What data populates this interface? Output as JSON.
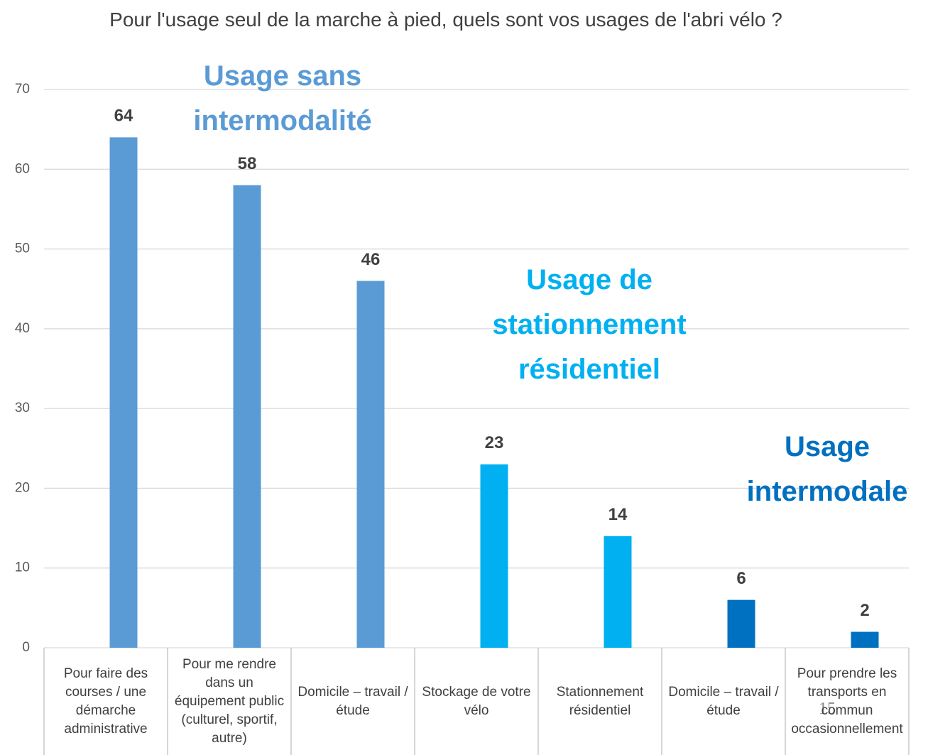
{
  "chart_data": {
    "type": "bar",
    "title": "Pour l'usage seul de la marche à pied, quels sont vos usages de l'abri vélo ?",
    "categories": [
      "Pour faire des courses / une démarche administrative",
      "Pour me rendre dans un équipement public (culturel, sportif, autre)",
      "Domicile – travail / étude",
      "Stockage de votre vélo",
      "Stationnement résidentiel",
      "Domicile – travail / étude",
      "Pour prendre les transports en commun occasionnellement"
    ],
    "values": [
      64,
      58,
      46,
      23,
      14,
      6,
      2
    ],
    "colors": [
      "#5b9bd5",
      "#5b9bd5",
      "#5b9bd5",
      "#00b0f0",
      "#00b0f0",
      "#0070c0",
      "#0070c0"
    ],
    "ylim": [
      0,
      70
    ],
    "yticks": [
      0,
      10,
      20,
      30,
      40,
      50,
      60,
      70
    ],
    "grid": true,
    "annotations": [
      {
        "text": "Usage sans intermodalité",
        "color": "#5b9bd5"
      },
      {
        "text": "Usage de stationnement résidentiel",
        "color": "#00b0f0"
      },
      {
        "text": "Usage intermodale",
        "color": "#0070c0"
      }
    ],
    "page_number": "15"
  }
}
